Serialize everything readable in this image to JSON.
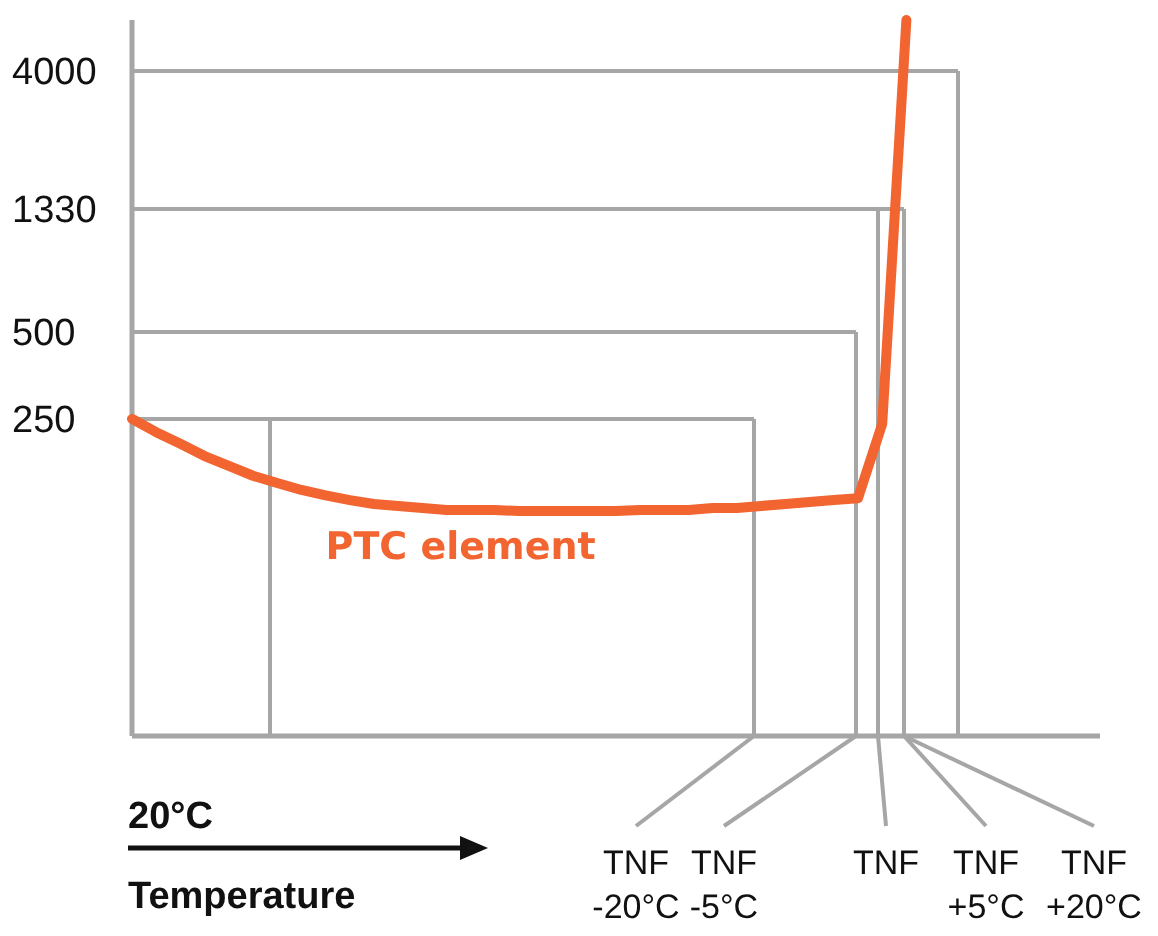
{
  "chart_data": {
    "type": "line",
    "xlabel": "Temperature",
    "log": "y",
    "ylim": [
      20,
      6000
    ],
    "yticks": [
      250,
      500,
      1330,
      4000
    ],
    "tick_labels": "y",
    "grid": false,
    "marker": "none",
    "line_style": "solid",
    "categories": [
      null,
      null,
      null,
      null,
      null,
      null,
      null,
      null,
      null,
      null,
      null,
      null,
      null,
      null,
      null,
      null,
      null,
      null,
      null,
      null,
      null,
      null,
      null,
      null,
      null,
      null,
      null,
      null,
      null,
      null,
      null,
      null,
      null,
      null,
      null,
      null,
      null,
      null,
      null,
      null,
      null
    ],
    "series": [
      {
        "name": "PTC element",
        "color": "#f26430",
        "values": [
          250,
          225,
          205,
          186,
          172,
          159,
          150,
          142,
          136,
          131,
          127,
          125,
          123,
          121,
          121,
          121,
          120,
          120,
          120,
          120,
          120,
          121,
          121,
          121,
          123,
          123,
          125,
          127,
          129,
          131,
          133,
          240,
          6000,
          null,
          null,
          null,
          null,
          null,
          null,
          null,
          null
        ]
      }
    ],
    "ref_lines": [
      {
        "axis": "y",
        "value": 250,
        "color": "#a6a6a6"
      },
      {
        "axis": "y",
        "value": 500,
        "color": "#a6a6a6"
      },
      {
        "axis": "y",
        "value": 1330,
        "color": "#a6a6a6"
      },
      {
        "axis": "y",
        "value": 4000,
        "color": "#a6a6a6"
      }
    ],
    "annotations": [
      "TNF -20°C",
      "TNF -5°C",
      "TNF",
      "TNF +5°C",
      "TNF +20°C",
      "20°C"
    ]
  }
}
